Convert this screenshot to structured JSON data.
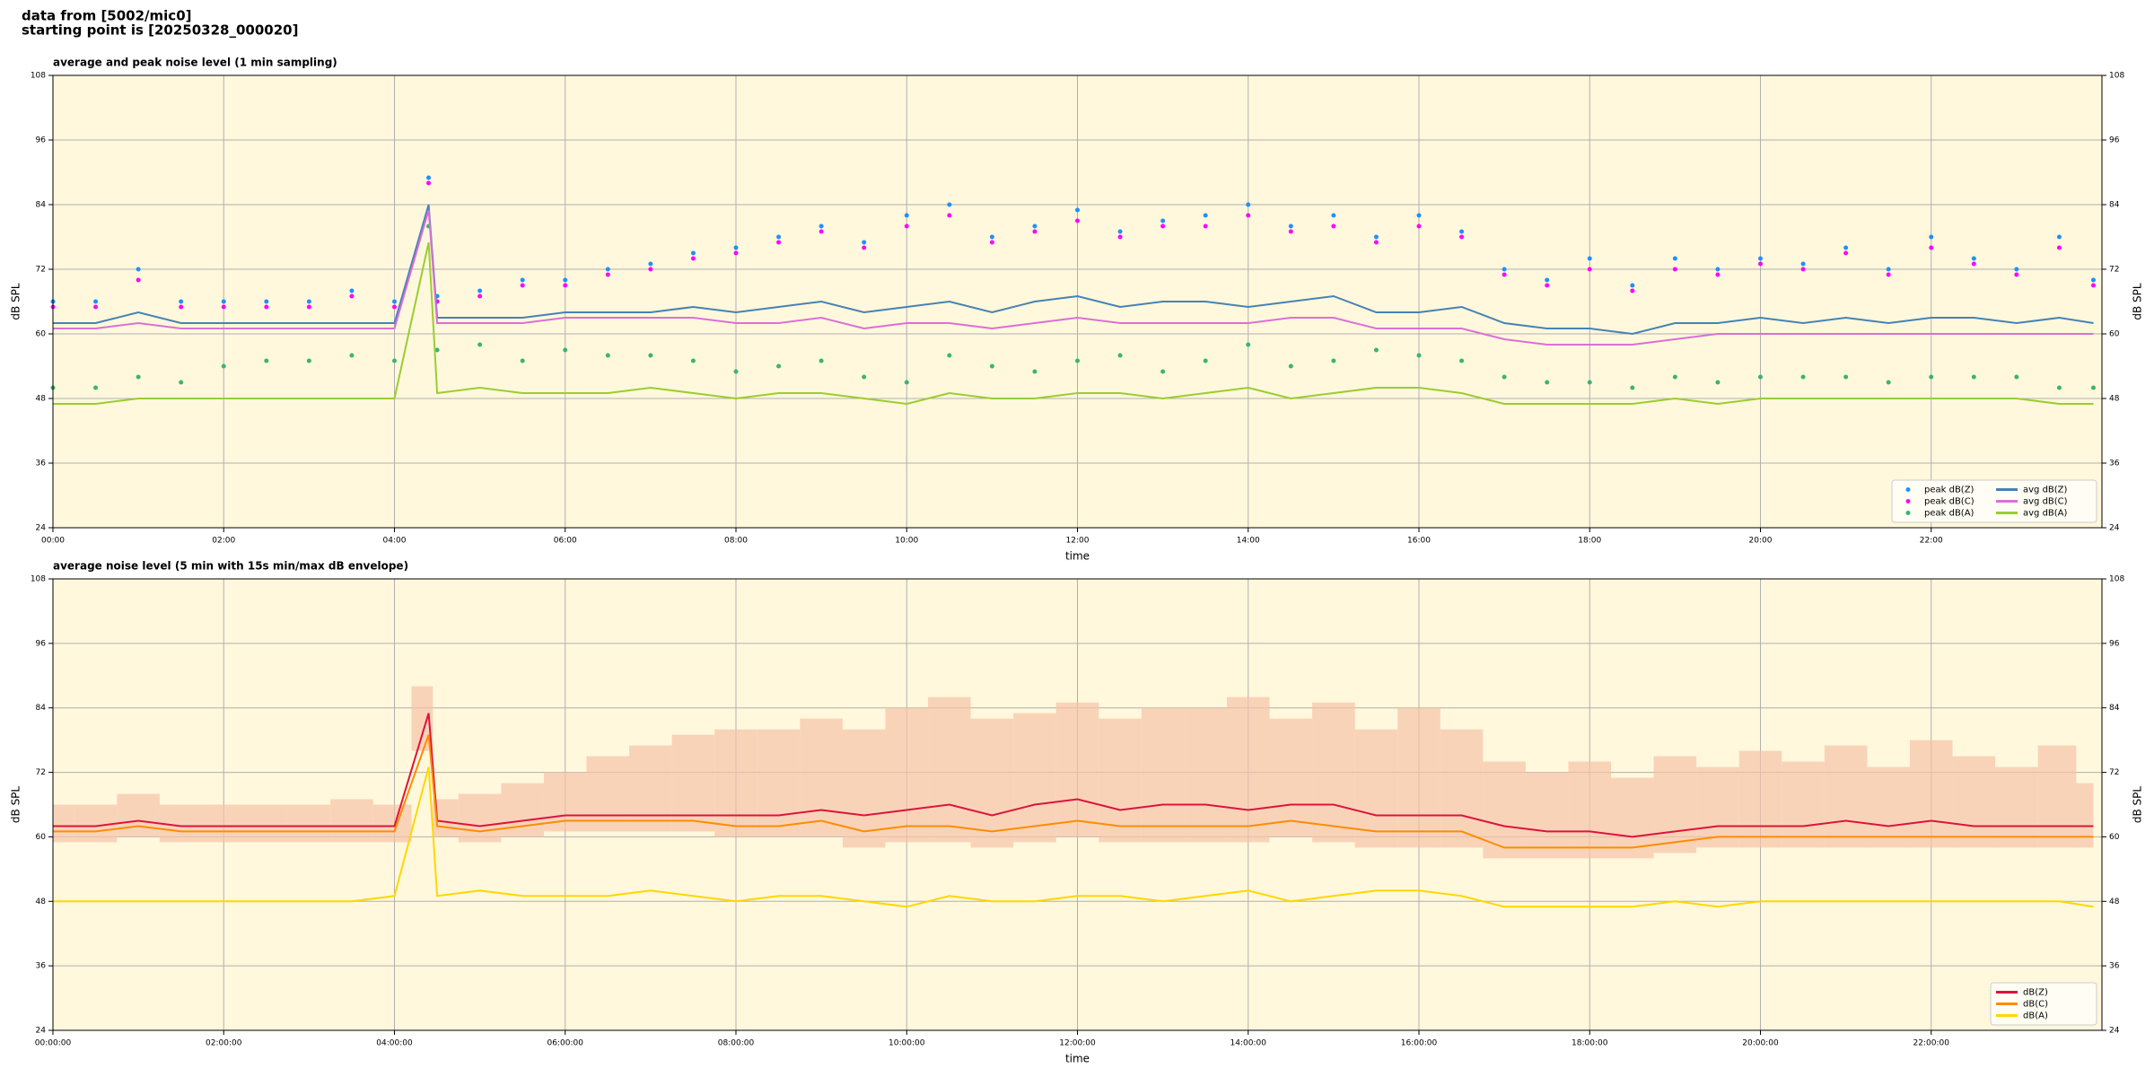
{
  "suptitle": [
    "data from [5002/mic0]",
    "starting point is [20250328_000020]"
  ],
  "chart_data": [
    {
      "type": "line",
      "title": "average and peak noise level (1 min sampling)",
      "xlabel": "time",
      "ylabel": "dB SPL",
      "background": "#fff8dc",
      "grid": true,
      "legend": "lower right",
      "right_axis": true,
      "x": [
        0,
        0.5,
        1,
        1.5,
        2,
        2.5,
        3,
        3.5,
        4,
        4.4,
        4.5,
        5,
        5.5,
        6,
        6.5,
        7,
        7.5,
        8,
        8.5,
        9,
        9.5,
        10,
        10.5,
        11,
        11.5,
        12,
        12.5,
        13,
        13.5,
        14,
        14.5,
        15,
        15.5,
        16,
        16.5,
        17,
        17.5,
        18,
        18.5,
        19,
        19.5,
        20,
        20.5,
        21,
        21.5,
        22,
        22.5,
        23,
        23.5,
        23.9
      ],
      "xlim": [
        0,
        24
      ],
      "xticks": [
        {
          "value": 0,
          "label": "00:00"
        },
        {
          "value": 2,
          "label": "02:00"
        },
        {
          "value": 4,
          "label": "04:00"
        },
        {
          "value": 6,
          "label": "06:00"
        },
        {
          "value": 8,
          "label": "08:00"
        },
        {
          "value": 10,
          "label": "10:00"
        },
        {
          "value": 12,
          "label": "12:00"
        },
        {
          "value": 14,
          "label": "14:00"
        },
        {
          "value": 16,
          "label": "16:00"
        },
        {
          "value": 18,
          "label": "18:00"
        },
        {
          "value": 20,
          "label": "20:00"
        },
        {
          "value": 22,
          "label": "22:00"
        }
      ],
      "ylim": [
        24,
        108
      ],
      "yticks": [
        24,
        36,
        48,
        60,
        72,
        84,
        96,
        108
      ],
      "series": [
        {
          "name": "peak dB(Z)",
          "color": "#1e90ff",
          "style": "dots",
          "values": [
            66,
            66,
            72,
            66,
            66,
            66,
            66,
            68,
            66,
            89,
            67,
            68,
            70,
            70,
            72,
            73,
            75,
            76,
            78,
            80,
            77,
            82,
            84,
            78,
            80,
            83,
            79,
            81,
            82,
            84,
            80,
            82,
            78,
            82,
            79,
            72,
            70,
            74,
            69,
            74,
            72,
            74,
            73,
            76,
            72,
            78,
            74,
            72,
            78,
            70
          ]
        },
        {
          "name": "peak dB(C)",
          "color": "#ff00ff",
          "style": "dots",
          "values": [
            65,
            65,
            70,
            65,
            65,
            65,
            65,
            67,
            65,
            88,
            66,
            67,
            69,
            69,
            71,
            72,
            74,
            75,
            77,
            79,
            76,
            80,
            82,
            77,
            79,
            81,
            78,
            80,
            80,
            82,
            79,
            80,
            77,
            80,
            78,
            71,
            69,
            72,
            68,
            72,
            71,
            73,
            72,
            75,
            71,
            76,
            73,
            71,
            76,
            69
          ]
        },
        {
          "name": "peak dB(A)",
          "color": "#3cb371",
          "style": "dots",
          "values": [
            50,
            50,
            52,
            51,
            54,
            55,
            55,
            56,
            55,
            80,
            57,
            58,
            55,
            57,
            56,
            56,
            55,
            53,
            54,
            55,
            52,
            51,
            56,
            54,
            53,
            55,
            56,
            53,
            55,
            58,
            54,
            55,
            57,
            56,
            55,
            52,
            51,
            51,
            50,
            52,
            51,
            52,
            52,
            52,
            51,
            52,
            52,
            52,
            50,
            50
          ]
        },
        {
          "name": "avg dB(Z)",
          "color": "#4682b4",
          "style": "line",
          "values": [
            62,
            62,
            64,
            62,
            62,
            62,
            62,
            62,
            62,
            84,
            63,
            63,
            63,
            64,
            64,
            64,
            65,
            64,
            65,
            66,
            64,
            65,
            66,
            64,
            66,
            67,
            65,
            66,
            66,
            65,
            66,
            67,
            64,
            64,
            65,
            62,
            61,
            61,
            60,
            62,
            62,
            63,
            62,
            63,
            62,
            63,
            63,
            62,
            63,
            62
          ]
        },
        {
          "name": "avg dB(C)",
          "color": "#da70d6",
          "style": "line",
          "values": [
            61,
            61,
            62,
            61,
            61,
            61,
            61,
            61,
            61,
            83,
            62,
            62,
            62,
            63,
            63,
            63,
            63,
            62,
            62,
            63,
            61,
            62,
            62,
            61,
            62,
            63,
            62,
            62,
            62,
            62,
            63,
            63,
            61,
            61,
            61,
            59,
            58,
            58,
            58,
            59,
            60,
            60,
            60,
            60,
            60,
            60,
            60,
            60,
            60,
            60
          ]
        },
        {
          "name": "avg dB(A)",
          "color": "#9acd32",
          "style": "line",
          "values": [
            47,
            47,
            48,
            48,
            48,
            48,
            48,
            48,
            48,
            77,
            49,
            50,
            49,
            49,
            49,
            50,
            49,
            48,
            49,
            49,
            48,
            47,
            49,
            48,
            48,
            49,
            49,
            48,
            49,
            50,
            48,
            49,
            50,
            50,
            49,
            47,
            47,
            47,
            47,
            48,
            47,
            48,
            48,
            48,
            48,
            48,
            48,
            48,
            47,
            47
          ]
        }
      ]
    },
    {
      "type": "line",
      "title": "average noise level (5 min with 15s min/max dB envelope)",
      "xlabel": "time",
      "ylabel": "dB SPL",
      "background": "#fff8dc",
      "grid": true,
      "legend": "lower right",
      "right_axis": true,
      "x": [
        0,
        0.5,
        1,
        1.5,
        2,
        2.5,
        3,
        3.5,
        4,
        4.4,
        4.5,
        5,
        5.5,
        6,
        6.5,
        7,
        7.5,
        8,
        8.5,
        9,
        9.5,
        10,
        10.5,
        11,
        11.5,
        12,
        12.5,
        13,
        13.5,
        14,
        14.5,
        15,
        15.5,
        16,
        16.5,
        17,
        17.5,
        18,
        18.5,
        19,
        19.5,
        20,
        20.5,
        21,
        21.5,
        22,
        22.5,
        23,
        23.5,
        23.9
      ],
      "xlim": [
        0,
        24
      ],
      "xticks": [
        {
          "value": 0,
          "label": "00:00:00"
        },
        {
          "value": 2,
          "label": "02:00:00"
        },
        {
          "value": 4,
          "label": "04:00:00"
        },
        {
          "value": 6,
          "label": "06:00:00"
        },
        {
          "value": 8,
          "label": "08:00:00"
        },
        {
          "value": 10,
          "label": "10:00:00"
        },
        {
          "value": 12,
          "label": "12:00:00"
        },
        {
          "value": 14,
          "label": "14:00:00"
        },
        {
          "value": 16,
          "label": "16:00:00"
        },
        {
          "value": 18,
          "label": "18:00:00"
        },
        {
          "value": 20,
          "label": "20:00:00"
        },
        {
          "value": 22,
          "label": "22:00:00"
        }
      ],
      "ylim": [
        24,
        108
      ],
      "yticks": [
        24,
        36,
        48,
        60,
        72,
        84,
        96,
        108
      ],
      "envelope": {
        "color": "#f6c3a8",
        "lower": [
          59,
          59,
          60,
          59,
          59,
          59,
          59,
          59,
          59,
          76,
          60,
          59,
          60,
          61,
          61,
          61,
          61,
          60,
          60,
          60,
          58,
          59,
          59,
          58,
          59,
          60,
          59,
          59,
          59,
          59,
          60,
          59,
          58,
          58,
          58,
          56,
          56,
          56,
          56,
          57,
          58,
          58,
          58,
          58,
          58,
          58,
          58,
          58,
          58,
          58
        ],
        "upper": [
          66,
          66,
          68,
          66,
          66,
          66,
          66,
          67,
          66,
          88,
          67,
          68,
          70,
          72,
          75,
          77,
          79,
          80,
          80,
          82,
          80,
          84,
          86,
          82,
          83,
          85,
          82,
          84,
          84,
          86,
          82,
          85,
          80,
          84,
          80,
          74,
          72,
          74,
          71,
          75,
          73,
          76,
          74,
          77,
          73,
          78,
          75,
          73,
          77,
          70
        ]
      },
      "series": [
        {
          "name": "dB(Z)",
          "color": "#dc143c",
          "style": "line",
          "values": [
            62,
            62,
            63,
            62,
            62,
            62,
            62,
            62,
            62,
            83,
            63,
            62,
            63,
            64,
            64,
            64,
            64,
            64,
            64,
            65,
            64,
            65,
            66,
            64,
            66,
            67,
            65,
            66,
            66,
            65,
            66,
            66,
            64,
            64,
            64,
            62,
            61,
            61,
            60,
            61,
            62,
            62,
            62,
            63,
            62,
            63,
            62,
            62,
            62,
            62
          ]
        },
        {
          "name": "dB(C)",
          "color": "#ff8c00",
          "style": "line",
          "values": [
            61,
            61,
            62,
            61,
            61,
            61,
            61,
            61,
            61,
            79,
            62,
            61,
            62,
            63,
            63,
            63,
            63,
            62,
            62,
            63,
            61,
            62,
            62,
            61,
            62,
            63,
            62,
            62,
            62,
            62,
            63,
            62,
            61,
            61,
            61,
            58,
            58,
            58,
            58,
            59,
            60,
            60,
            60,
            60,
            60,
            60,
            60,
            60,
            60,
            60
          ]
        },
        {
          "name": "dB(A)",
          "color": "#ffd700",
          "style": "line",
          "values": [
            48,
            48,
            48,
            48,
            48,
            48,
            48,
            48,
            49,
            73,
            49,
            50,
            49,
            49,
            49,
            50,
            49,
            48,
            49,
            49,
            48,
            47,
            49,
            48,
            48,
            49,
            49,
            48,
            49,
            50,
            48,
            49,
            50,
            50,
            49,
            47,
            47,
            47,
            47,
            48,
            47,
            48,
            48,
            48,
            48,
            48,
            48,
            48,
            48,
            47
          ]
        }
      ]
    }
  ]
}
